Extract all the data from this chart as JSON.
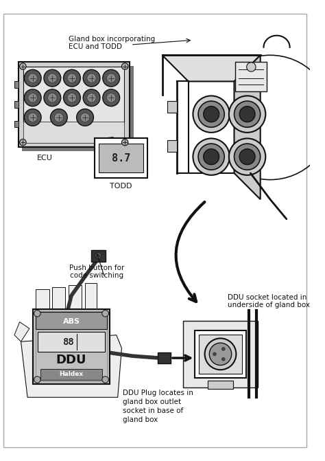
{
  "labels": {
    "gland_box": "Gland box incorporating\nECU and TODD",
    "ecu": "ECU",
    "todd": "TODD",
    "push_button": "Push button for\ncode switching",
    "ddu_socket": "DDU socket located in\nunderside of gland box",
    "ddu_plug": "DDU Plug locates in\ngland box outlet\nsocket in base of\ngland box"
  },
  "font_size": 7.5,
  "lc": "#111111",
  "bg": "#ffffff"
}
